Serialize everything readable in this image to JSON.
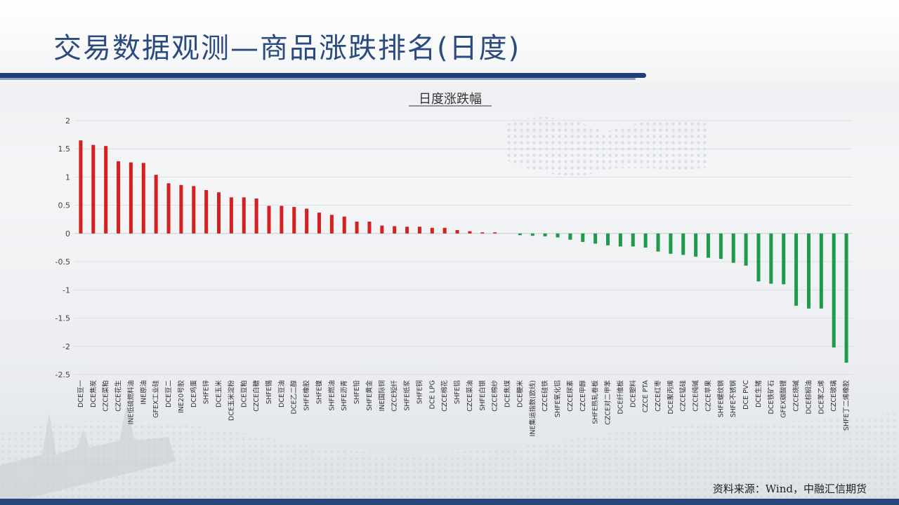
{
  "page": {
    "title": "交易数据观测—商品涨跌排名(日度)",
    "source_note": "资料来源：Wind，中融汇信期货"
  },
  "colors": {
    "positive_bar": "#d42020",
    "negative_bar": "#1e9a4b",
    "title_text": "#2b4a7e",
    "accent_line": "#1f3f7a"
  },
  "chart_data": {
    "type": "bar",
    "title": "日度涨跌幅",
    "xlabel": "",
    "ylabel": "",
    "ylim": [
      -2.5,
      2
    ],
    "yticks": [
      2,
      1.5,
      1,
      0.5,
      0,
      -0.5,
      -1,
      -1.5,
      -2,
      -2.5
    ],
    "grid": true,
    "legend": "none",
    "categories": [
      "DCE豆一",
      "DCE焦炭",
      "CZCE菜粕",
      "CZCE花生",
      "INE低硫燃料油",
      "INE原油",
      "GFEX工业硅",
      "DCE豆二",
      "INE20号胶",
      "DCE鸡蛋",
      "SHFE锌",
      "DCE玉米",
      "DCE玉米淀粉",
      "DCE豆粕",
      "CZCE白糖",
      "SHFE锡",
      "DCE豆油",
      "DCE乙二醇",
      "SHFE橡胶",
      "SHFE镍",
      "SHFE燃油",
      "SHFE沥青",
      "SHFE铅",
      "SHFE黄金",
      "INE国际铜",
      "CZCE短纤",
      "SHFE纸浆",
      "SHFE铜",
      "DCE LPG",
      "CZCE棉花",
      "SHFE铝",
      "CZCE菜油",
      "SHFE白银",
      "CZCE棉纱",
      "DCE焦煤",
      "DCE粳米",
      "INE集运指数(欧线)",
      "CZCE硅铁",
      "SHFE氧化铝",
      "CZCE尿素",
      "CZCE甲醇",
      "SHFE热轧卷板",
      "CZCE对二甲苯",
      "DCE纤维板",
      "DCE塑料",
      "CZCE PTA",
      "CZCE红枣",
      "DCE聚丙烯",
      "CZCE锰硅",
      "CZCE纯碱",
      "CZCE苹果",
      "SHFE螺纹钢",
      "SHFE不锈钢",
      "DCE PVC",
      "DCE生猪",
      "DCE铁矿石",
      "GFEX碳酸锂",
      "CZCE烧碱",
      "DCE棕榈油",
      "DCE苯乙烯",
      "CZCE玻璃",
      "SHFE丁二烯橡胶"
    ],
    "values": [
      1.65,
      1.57,
      1.55,
      1.28,
      1.26,
      1.25,
      1.04,
      0.89,
      0.86,
      0.84,
      0.77,
      0.73,
      0.64,
      0.64,
      0.62,
      0.49,
      0.49,
      0.47,
      0.44,
      0.37,
      0.33,
      0.3,
      0.21,
      0.21,
      0.14,
      0.13,
      0.12,
      0.12,
      0.1,
      0.1,
      0.06,
      0.04,
      0.02,
      0.02,
      0.0,
      -0.03,
      -0.04,
      -0.05,
      -0.07,
      -0.11,
      -0.15,
      -0.18,
      -0.21,
      -0.23,
      -0.23,
      -0.25,
      -0.32,
      -0.36,
      -0.38,
      -0.41,
      -0.43,
      -0.45,
      -0.52,
      -0.57,
      -0.85,
      -0.89,
      -0.9,
      -1.28,
      -1.33,
      -1.33,
      -2.02,
      -2.29
    ]
  }
}
